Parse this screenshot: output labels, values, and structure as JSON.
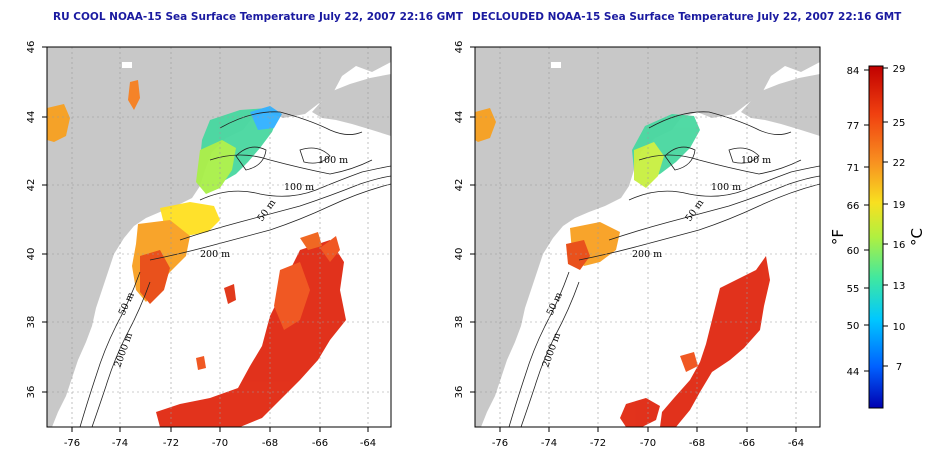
{
  "panels": [
    {
      "title": "RU COOL NOAA-15 Sea Surface Temperature July 22, 2007 22:16 GMT",
      "contour_labels": [
        "100 m",
        "100 m",
        "50 m",
        "200 m",
        "50 m",
        "2000 m"
      ]
    },
    {
      "title": "DECLOUDED NOAA-15 Sea Surface Temperature July 22, 2007 22:16 GMT",
      "contour_labels": [
        "100 m",
        "100 m",
        "50 m",
        "200 m",
        "50 m",
        "2000 m"
      ]
    }
  ],
  "axes": {
    "lon_ticks": [
      "-76",
      "-74",
      "-72",
      "-70",
      "-68",
      "-66",
      "-64"
    ],
    "lat_ticks": [
      "46",
      "44",
      "42",
      "40",
      "38",
      "36"
    ]
  },
  "colorbar": {
    "fahrenheit_ticks": [
      "84",
      "77",
      "71",
      "66",
      "60",
      "55",
      "50",
      "44"
    ],
    "celsius_ticks": [
      "29",
      "25",
      "22",
      "19",
      "16",
      "13",
      "10",
      "7"
    ],
    "left_unit": "°F",
    "right_unit": "°C",
    "colors": [
      "#0000b0",
      "#0060ff",
      "#00c8ff",
      "#40e8a0",
      "#b0f040",
      "#f8e020",
      "#f89020",
      "#f04010",
      "#c00000"
    ]
  },
  "colors": {
    "land": "#c8c8c8",
    "ocean": "#ffffff",
    "title": "#1a1aa0"
  }
}
